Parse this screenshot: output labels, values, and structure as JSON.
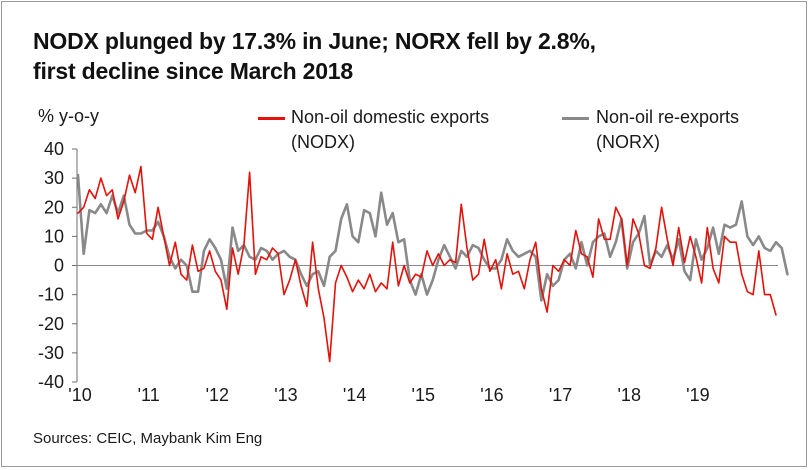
{
  "chart_data": {
    "type": "line",
    "title_lines": [
      "NODX plunged by 17.3% in June; NORX fell by 2.8%,",
      "first decline since March 2018"
    ],
    "ylabel": "% y-o-y",
    "ylim": [
      -40,
      40
    ],
    "yticks": [
      "40",
      "30",
      "20",
      "10",
      "0",
      "-10",
      "-20",
      "-30",
      "-40"
    ],
    "ytick_values": [
      40,
      30,
      20,
      10,
      0,
      -10,
      -20,
      -30,
      -40
    ],
    "x_start": "2010-01",
    "x_end": "2019-06",
    "xtick_labels": [
      "'10",
      "'11",
      "'12",
      "'13",
      "'14",
      "'15",
      "'16",
      "'17",
      "'18",
      "'19"
    ],
    "source": "Sources: CEIC, Maybank Kim Eng",
    "series": [
      {
        "name": "Non-oil domestic exports (NODX)",
        "legend_lines": [
          "Non-oil domestic exports",
          "(NODX)"
        ],
        "color": "#e3120b",
        "values": [
          18,
          20,
          26,
          23,
          30,
          24,
          26,
          16,
          22,
          31,
          25,
          34,
          11,
          9,
          20,
          10,
          0,
          8,
          -3,
          -5,
          7,
          -2,
          -1,
          5,
          -2,
          -5,
          -15,
          6,
          -3,
          7,
          32,
          -3,
          3,
          2,
          6,
          4,
          -10,
          -5,
          2,
          -7,
          -14,
          8,
          -8,
          -18,
          -33,
          -6,
          0,
          -4,
          -9,
          -5,
          -8,
          -3,
          -9,
          -6,
          -8,
          8,
          -7,
          0,
          -6,
          -3,
          -4,
          5,
          0,
          4,
          0,
          2,
          1,
          21,
          6,
          -5,
          -3,
          9,
          -2,
          2,
          -8,
          4,
          -3,
          -2,
          -8,
          2,
          8,
          -8,
          -16,
          0,
          -2,
          2,
          0,
          12,
          4,
          3,
          -4,
          16,
          9,
          9,
          20,
          16,
          0,
          16,
          11,
          0,
          -1,
          6,
          20,
          9,
          0,
          13,
          1,
          10,
          3,
          -6,
          13,
          -1,
          -6,
          10,
          8,
          8,
          -3,
          -9,
          -10,
          5,
          -10,
          -10,
          -17
        ]
      },
      {
        "name": "Non-oil re-exports (NORX)",
        "legend_lines": [
          "Non-oil re-exports",
          "(NORX)"
        ],
        "color": "#898989",
        "values": [
          31,
          4,
          19,
          18,
          21,
          18,
          24,
          18,
          24,
          14,
          11,
          11,
          12,
          12,
          15,
          10,
          3,
          -1,
          2,
          0,
          -9,
          -9,
          5,
          9,
          6,
          2,
          -8,
          13,
          5,
          7,
          3,
          2,
          6,
          5,
          2,
          4,
          5,
          3,
          2,
          -3,
          -7,
          -3,
          -2,
          -7,
          3,
          5,
          16,
          21,
          10,
          8,
          19,
          18,
          10,
          25,
          14,
          18,
          8,
          9,
          -5,
          -10,
          -3,
          -10,
          -5,
          2,
          7,
          3,
          -1,
          5,
          3,
          7,
          6,
          2,
          -1,
          -1,
          2,
          9,
          5,
          3,
          4,
          5,
          3,
          -12,
          -3,
          -7,
          -5,
          2,
          4,
          -1,
          8,
          0,
          8,
          10,
          11,
          3,
          8,
          16,
          -1,
          8,
          11,
          17,
          0,
          5,
          3,
          7,
          2,
          9,
          -2,
          -5,
          9,
          2,
          6,
          13,
          4,
          14,
          13,
          14,
          22,
          10,
          7,
          10,
          6,
          5,
          8,
          6,
          -3
        ]
      }
    ]
  }
}
